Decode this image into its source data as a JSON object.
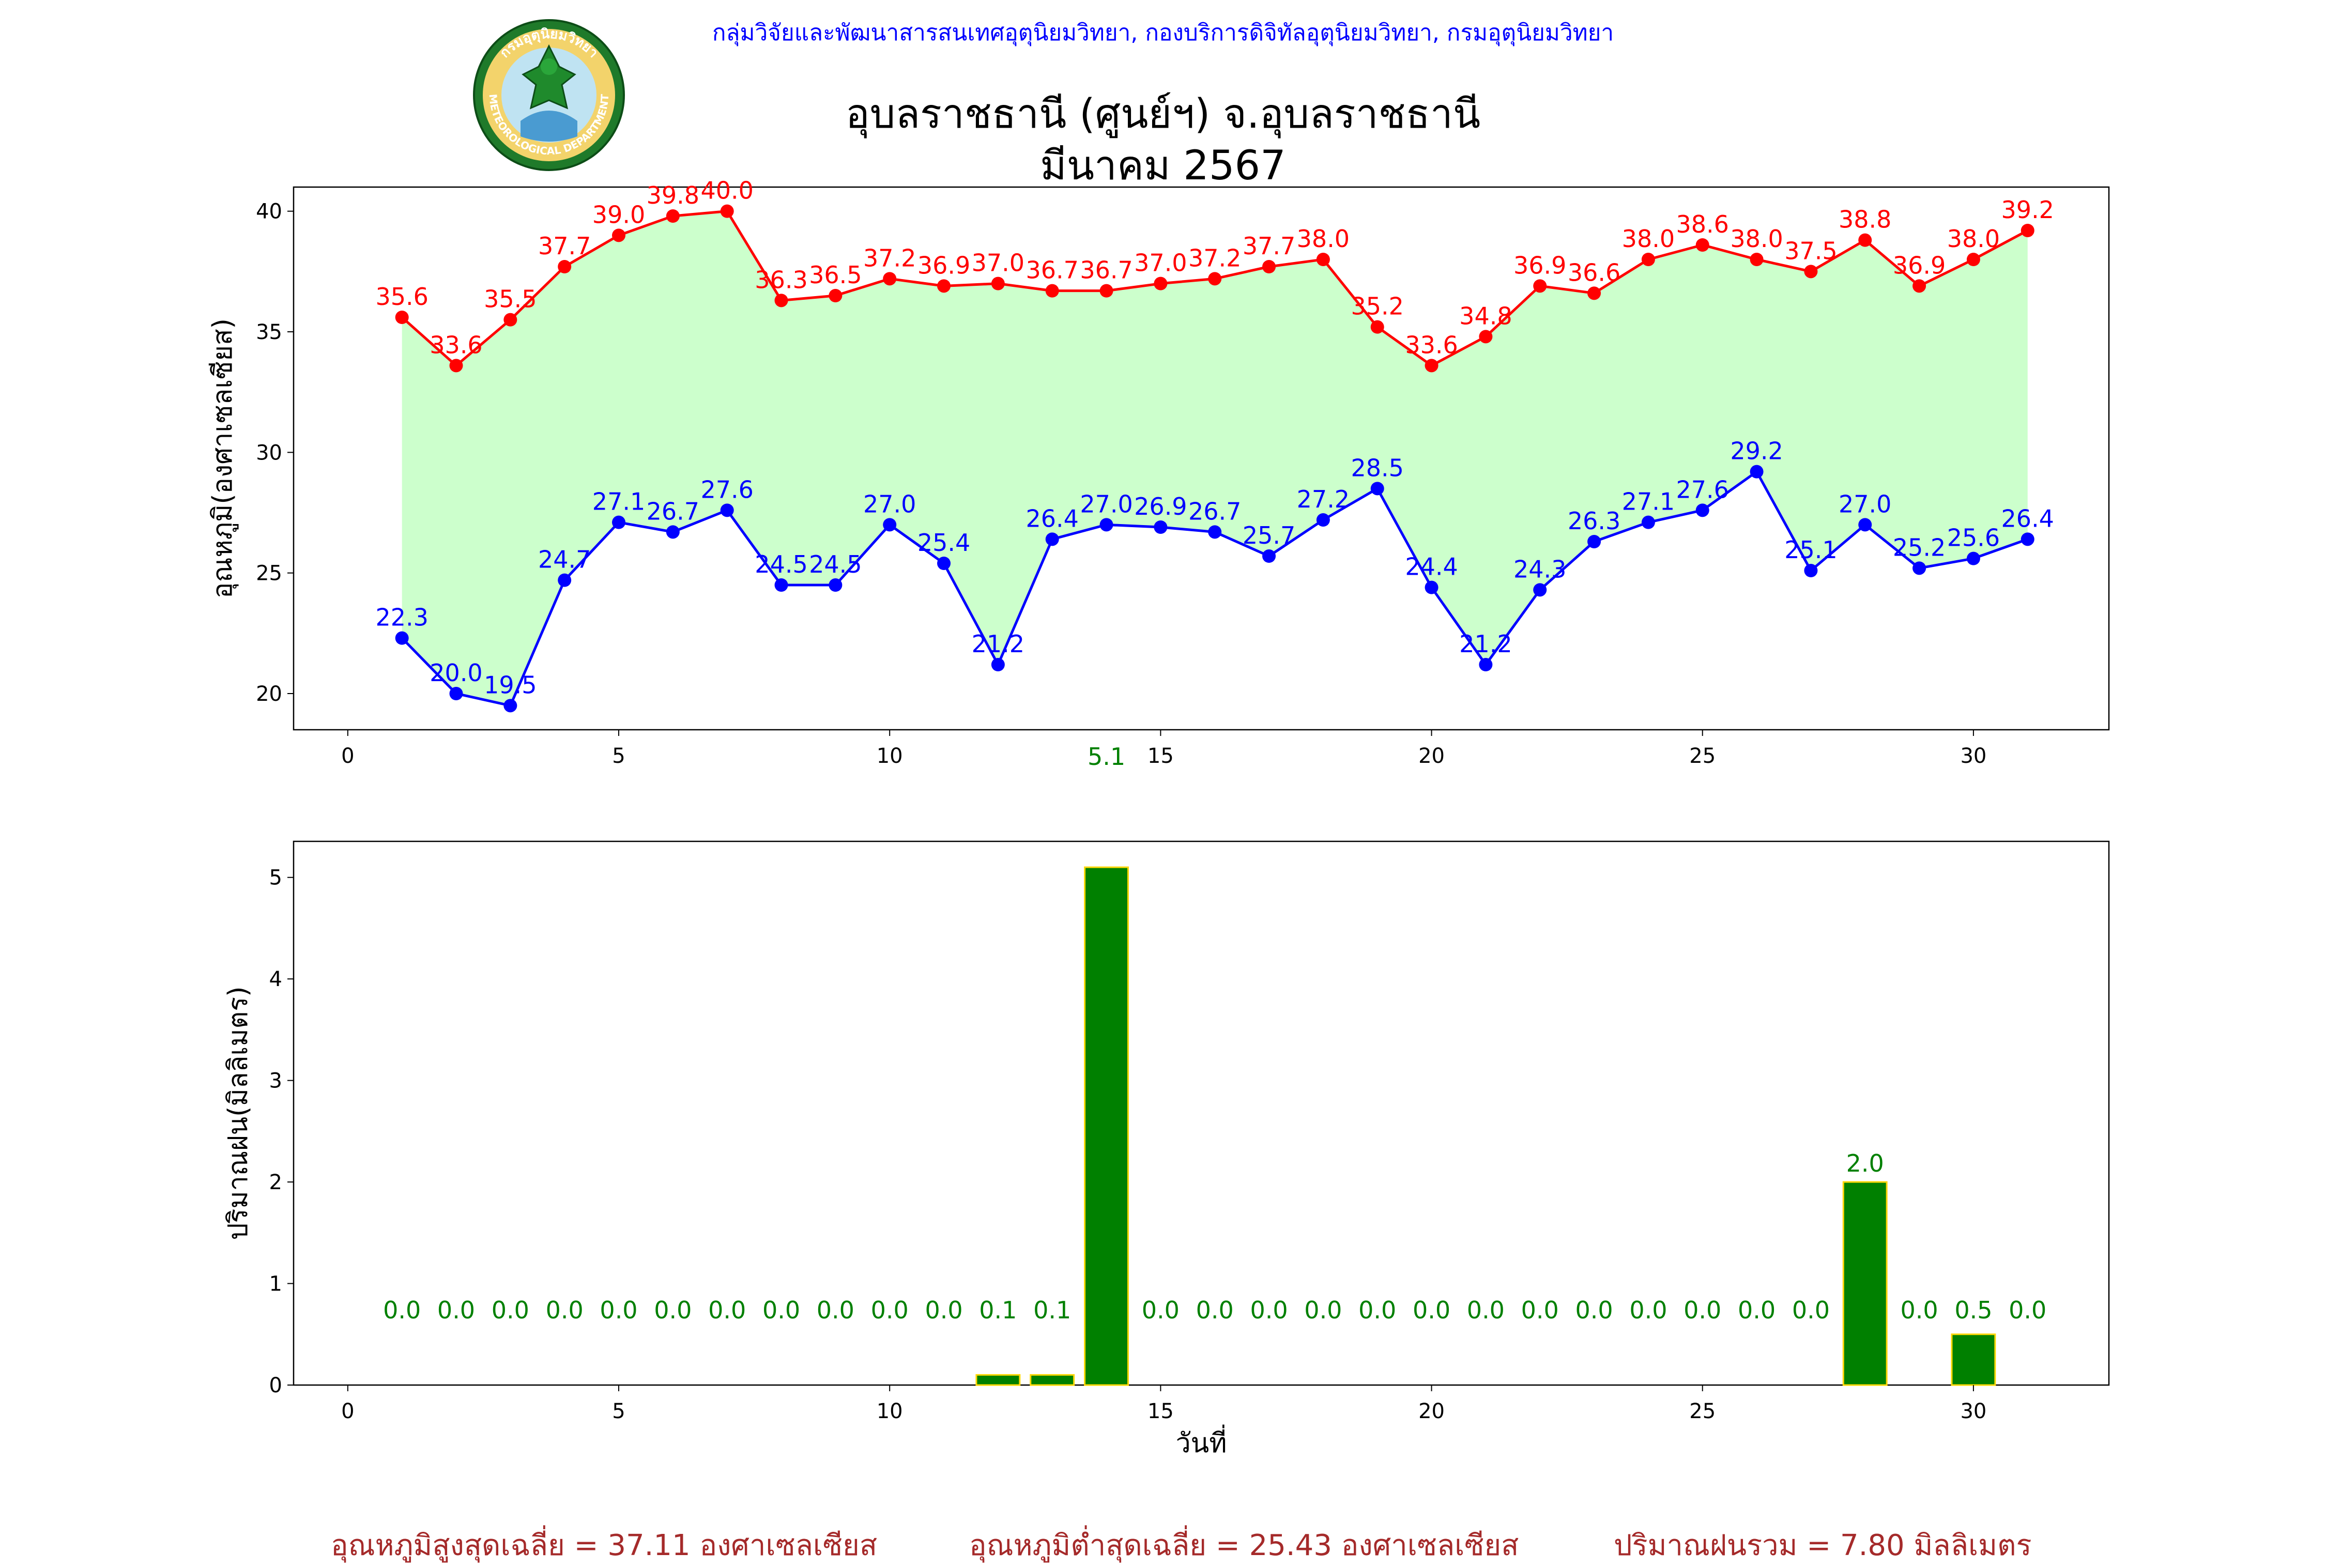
{
  "header": {
    "agency_line": "กลุ่มวิจัยและพัฒนาสารสนเทศอุตุนิยมวิทยา, กองบริการดิจิทัลอุตุนิยมวิทยา, กรมอุตุนิยมวิทยา",
    "title_line1": "อุบลราชธานี (ศูนย์ฯ) จ.อุบลราชธานี",
    "title_line2": "มีนาคม 2567",
    "logo_ring_text": "กรมอุตุนิยมวิทยา",
    "logo_bottom_text": "METEOROLOGICAL DEPARTMENT"
  },
  "summary": {
    "avg_max": "อุณหภูมิสูงสุดเฉลี่ย = 37.11 องศาเซลเซียส",
    "avg_min": "อุณหภูมิต่ำสุดเฉลี่ย = 25.43 องศาเซลเซียส",
    "total_rain": "ปริมาณฝนรวม = 7.80 มิลลิเมตร"
  },
  "colors": {
    "max_line": "#ff0000",
    "min_line": "#0000ff",
    "fill": "#ccffcc",
    "rain_bar": "#008000",
    "rain_edge": "#ffd700",
    "rain_label": "#008000",
    "summary_text": "#a52a2a"
  },
  "chart_data": [
    {
      "type": "line",
      "ylabel": "อุณหภูมิ(องศาเซลเซียส)",
      "xlim": [
        -1,
        32.5
      ],
      "ylim": [
        18.5,
        41
      ],
      "xticks": [
        0,
        5,
        10,
        15,
        20,
        25,
        30
      ],
      "yticks": [
        20,
        25,
        30,
        35,
        40
      ],
      "x": [
        1,
        2,
        3,
        4,
        5,
        6,
        7,
        8,
        9,
        10,
        11,
        12,
        13,
        14,
        15,
        16,
        17,
        18,
        19,
        20,
        21,
        22,
        23,
        24,
        25,
        26,
        27,
        28,
        29,
        30,
        31
      ],
      "series": [
        {
          "key": "max",
          "values": [
            35.6,
            33.6,
            35.5,
            37.7,
            39.0,
            39.8,
            40.0,
            36.3,
            36.5,
            37.2,
            36.9,
            37.0,
            36.7,
            36.7,
            37.0,
            37.2,
            37.7,
            38.0,
            35.2,
            33.6,
            34.8,
            36.9,
            36.6,
            38.0,
            38.6,
            38.0,
            37.5,
            38.8,
            36.9,
            38.0,
            39.2
          ]
        },
        {
          "key": "min",
          "values": [
            22.3,
            20.0,
            19.5,
            24.7,
            27.1,
            26.7,
            27.6,
            24.5,
            24.5,
            27.0,
            25.4,
            21.2,
            26.4,
            27.0,
            26.9,
            26.7,
            25.7,
            27.2,
            28.5,
            24.4,
            21.2,
            24.3,
            26.3,
            27.1,
            27.6,
            29.2,
            25.1,
            27.0,
            25.2,
            25.6,
            26.4
          ]
        }
      ],
      "fill_between": true,
      "annotation": {
        "text": "5.1",
        "x": 14
      }
    },
    {
      "type": "bar",
      "xlabel": "วันที่",
      "ylabel": "ปริมาณฝน(มิลลิเมตร)",
      "xlim": [
        -1,
        32.5
      ],
      "ylim": [
        0,
        5.355
      ],
      "xticks": [
        0,
        5,
        10,
        15,
        20,
        25,
        30
      ],
      "yticks": [
        0,
        1,
        2,
        3,
        4,
        5
      ],
      "x": [
        1,
        2,
        3,
        4,
        5,
        6,
        7,
        8,
        9,
        10,
        11,
        12,
        13,
        14,
        15,
        16,
        17,
        18,
        19,
        20,
        21,
        22,
        23,
        24,
        25,
        26,
        27,
        28,
        29,
        30,
        31
      ],
      "values": [
        0.0,
        0.0,
        0.0,
        0.0,
        0.0,
        0.0,
        0.0,
        0.0,
        0.0,
        0.0,
        0.0,
        0.1,
        0.1,
        5.1,
        0.0,
        0.0,
        0.0,
        0.0,
        0.0,
        0.0,
        0.0,
        0.0,
        0.0,
        0.0,
        0.0,
        0.0,
        0.0,
        2.0,
        0.0,
        0.5,
        0.0
      ],
      "labels": [
        "0.0",
        "0.0",
        "0.0",
        "0.0",
        "0.0",
        "0.0",
        "0.0",
        "0.0",
        "0.0",
        "0.0",
        "0.0",
        "0.1",
        "0.1",
        "",
        "0.0",
        "0.0",
        "0.0",
        "0.0",
        "0.0",
        "0.0",
        "0.0",
        "0.0",
        "0.0",
        "0.0",
        "0.0",
        "0.0",
        "0.0",
        "2.0",
        "0.0",
        "0.5",
        "0.0"
      ]
    }
  ]
}
